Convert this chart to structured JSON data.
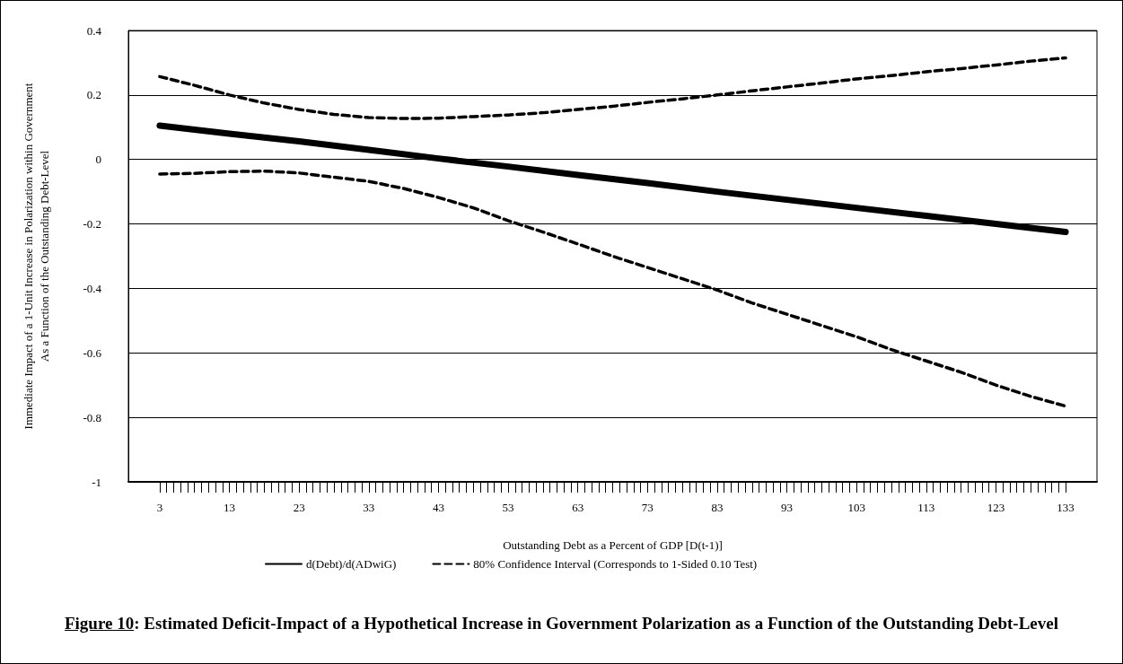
{
  "chart_data": {
    "type": "line",
    "title": "Figure 10: Estimated Deficit-Impact of a Hypothetical Increase in Government Polarization as a Function of the Outstanding Debt-Level",
    "xlabel": "Outstanding Debt as a Percent of GDP [D(t-1)]",
    "ylabel": "Immediate Impact of a 1-Unit Increase in Polarization within Government\nAs a Function of the Outstanding Debt-Level",
    "series": [
      {
        "name": "d(Debt)/d(ADwiG)",
        "color": "#000000",
        "line_style": "solid",
        "x": [
          3,
          13,
          23,
          33,
          43,
          53,
          63,
          73,
          83,
          93,
          103,
          113,
          123,
          133
        ],
        "values": [
          0.105,
          0.08,
          0.056,
          0.03,
          0.003,
          -0.022,
          -0.048,
          -0.073,
          -0.1,
          -0.125,
          -0.15,
          -0.175,
          -0.2,
          -0.225
        ]
      },
      {
        "name": "80% Confidence Interval (Corresponds to 1-Sided 0.10 Test)",
        "color": "#000000",
        "line_style": "dashed",
        "x": [
          3,
          8,
          13,
          18,
          23,
          28,
          33,
          38,
          43,
          48,
          53,
          58,
          63,
          68,
          73,
          78,
          83,
          88,
          93,
          98,
          103,
          108,
          113,
          118,
          123,
          128,
          133
        ],
        "values": [
          0.257,
          0.23,
          0.2,
          0.175,
          0.155,
          0.14,
          0.13,
          0.127,
          0.128,
          0.133,
          0.138,
          0.145,
          0.155,
          0.165,
          0.177,
          0.188,
          0.2,
          0.213,
          0.225,
          0.237,
          0.25,
          0.26,
          0.272,
          0.282,
          0.293,
          0.305,
          0.315
        ]
      },
      {
        "color": "#000000",
        "line_style": "dashed",
        "x": [
          3,
          8,
          13,
          18,
          23,
          28,
          33,
          38,
          43,
          48,
          53,
          58,
          63,
          68,
          73,
          78,
          83,
          88,
          93,
          98,
          103,
          108,
          113,
          118,
          123,
          128,
          133
        ],
        "values": [
          -0.045,
          -0.043,
          -0.038,
          -0.036,
          -0.042,
          -0.055,
          -0.068,
          -0.09,
          -0.118,
          -0.15,
          -0.19,
          -0.225,
          -0.262,
          -0.3,
          -0.335,
          -0.37,
          -0.405,
          -0.445,
          -0.48,
          -0.515,
          -0.55,
          -0.59,
          -0.625,
          -0.66,
          -0.7,
          -0.735,
          -0.765
        ]
      }
    ],
    "xlim": [
      -1.5,
      137.5
    ],
    "xticks": [
      3,
      {
        "value": 4,
        "label": null
      },
      {
        "value": 5,
        "label": null
      },
      {
        "value": 6,
        "label": null
      },
      {
        "value": 7,
        "label": null
      },
      {
        "value": 8,
        "label": null
      },
      {
        "value": 9,
        "label": null
      },
      {
        "value": 10,
        "label": null
      },
      {
        "value": 11,
        "label": null
      },
      {
        "value": 12,
        "label": null
      },
      13,
      {
        "value": 14,
        "label": null
      },
      {
        "value": 15,
        "label": null
      },
      {
        "value": 16,
        "label": null
      },
      {
        "value": 17,
        "label": null
      },
      {
        "value": 18,
        "label": null
      },
      {
        "value": 19,
        "label": null
      },
      {
        "value": 20,
        "label": null
      },
      {
        "value": 21,
        "label": null
      },
      {
        "value": 22,
        "label": null
      },
      23,
      {
        "value": 24,
        "label": null
      },
      {
        "value": 25,
        "label": null
      },
      {
        "value": 26,
        "label": null
      },
      {
        "value": 27,
        "label": null
      },
      {
        "value": 28,
        "label": null
      },
      {
        "value": 29,
        "label": null
      },
      {
        "value": 30,
        "label": null
      },
      {
        "value": 31,
        "label": null
      },
      {
        "value": 32,
        "label": null
      },
      33,
      {
        "value": 34,
        "label": null
      },
      {
        "value": 35,
        "label": null
      },
      {
        "value": 36,
        "label": null
      },
      {
        "value": 37,
        "label": null
      },
      {
        "value": 38,
        "label": null
      },
      {
        "value": 39,
        "label": null
      },
      {
        "value": 40,
        "label": null
      },
      {
        "value": 41,
        "label": null
      },
      {
        "value": 42,
        "label": null
      },
      43,
      {
        "value": 44,
        "label": null
      },
      {
        "value": 45,
        "label": null
      },
      {
        "value": 46,
        "label": null
      },
      {
        "value": 47,
        "label": null
      },
      {
        "value": 48,
        "label": null
      },
      {
        "value": 49,
        "label": null
      },
      {
        "value": 50,
        "label": null
      },
      {
        "value": 51,
        "label": null
      },
      {
        "value": 52,
        "label": null
      },
      53,
      {
        "value": 54,
        "label": null
      },
      {
        "value": 55,
        "label": null
      },
      {
        "value": 56,
        "label": null
      },
      {
        "value": 57,
        "label": null
      },
      {
        "value": 58,
        "label": null
      },
      {
        "value": 59,
        "label": null
      },
      {
        "value": 60,
        "label": null
      },
      {
        "value": 61,
        "label": null
      },
      {
        "value": 62,
        "label": null
      },
      63,
      {
        "value": 64,
        "label": null
      },
      {
        "value": 65,
        "label": null
      },
      {
        "value": 66,
        "label": null
      },
      {
        "value": 67,
        "label": null
      },
      {
        "value": 68,
        "label": null
      },
      {
        "value": 69,
        "label": null
      },
      {
        "value": 70,
        "label": null
      },
      {
        "value": 71,
        "label": null
      },
      {
        "value": 72,
        "label": null
      },
      73,
      {
        "value": 74,
        "label": null
      },
      {
        "value": 75,
        "label": null
      },
      {
        "value": 76,
        "label": null
      },
      {
        "value": 77,
        "label": null
      },
      {
        "value": 78,
        "label": null
      },
      {
        "value": 79,
        "label": null
      },
      {
        "value": 80,
        "label": null
      },
      {
        "value": 81,
        "label": null
      },
      {
        "value": 82,
        "label": null
      },
      83,
      {
        "value": 84,
        "label": null
      },
      {
        "value": 85,
        "label": null
      },
      {
        "value": 86,
        "label": null
      },
      {
        "value": 87,
        "label": null
      },
      {
        "value": 88,
        "label": null
      },
      {
        "value": 89,
        "label": null
      },
      {
        "value": 90,
        "label": null
      },
      {
        "value": 91,
        "label": null
      },
      {
        "value": 92,
        "label": null
      },
      93,
      {
        "value": 94,
        "label": null
      },
      {
        "value": 95,
        "label": null
      },
      {
        "value": 96,
        "label": null
      },
      {
        "value": 97,
        "label": null
      },
      {
        "value": 98,
        "label": null
      },
      {
        "value": 99,
        "label": null
      },
      {
        "value": 100,
        "label": null
      },
      {
        "value": 101,
        "label": null
      },
      {
        "value": 102,
        "label": null
      },
      103,
      {
        "value": 104,
        "label": null
      },
      {
        "value": 105,
        "label": null
      },
      {
        "value": 106,
        "label": null
      },
      {
        "value": 107,
        "label": null
      },
      {
        "value": 108,
        "label": null
      },
      {
        "value": 109,
        "label": null
      },
      {
        "value": 110,
        "label": null
      },
      {
        "value": 111,
        "label": null
      },
      {
        "value": 112,
        "label": null
      },
      113,
      {
        "value": 114,
        "label": null
      },
      {
        "value": 115,
        "label": null
      },
      {
        "value": 116,
        "label": null
      },
      {
        "value": 117,
        "label": null
      },
      {
        "value": 118,
        "label": null
      },
      {
        "value": 119,
        "label": null
      },
      {
        "value": 120,
        "label": null
      },
      {
        "value": 121,
        "label": null
      },
      {
        "value": 122,
        "label": null
      },
      123,
      {
        "value": 124,
        "label": null
      },
      {
        "value": 125,
        "label": null
      },
      {
        "value": 126,
        "label": null
      },
      {
        "value": 127,
        "label": null
      },
      {
        "value": 128,
        "label": null
      },
      {
        "value": 129,
        "label": null
      },
      {
        "value": 130,
        "label": null
      },
      {
        "value": 131,
        "label": null
      },
      {
        "value": 132,
        "label": null
      },
      133
    ],
    "ylim": [
      -1,
      0.4
    ],
    "yticks": [
      0.4,
      0.2,
      0,
      -0.2,
      -0.4,
      -0.6,
      -0.8,
      -1
    ],
    "grid": "y",
    "legend": "bottom",
    "marker": "none"
  }
}
